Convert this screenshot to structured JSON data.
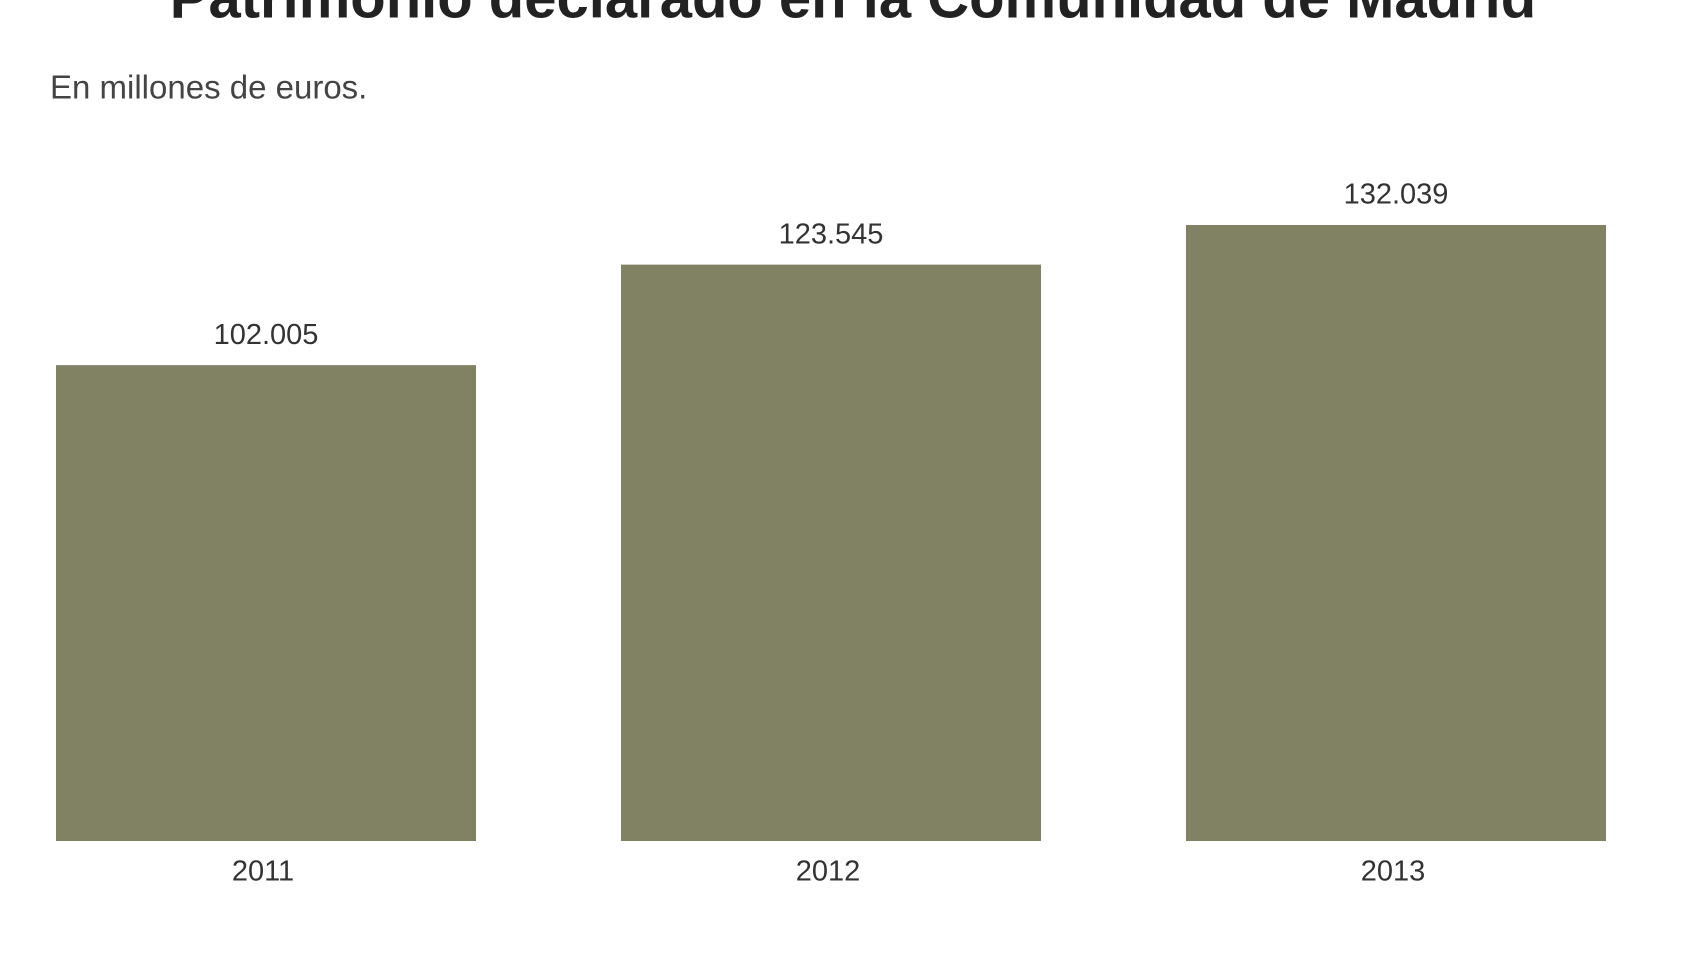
{
  "chart_data": {
    "type": "bar",
    "title": "Patrimonio declarado en la Comunidad de Madrid",
    "subtitle": "En millones de euros.",
    "categories": [
      "2011",
      "2012",
      "2013"
    ],
    "values": [
      102005,
      123545,
      132039
    ],
    "value_labels": [
      "102.005",
      "123.545",
      "132.039"
    ],
    "color": "#818163"
  }
}
